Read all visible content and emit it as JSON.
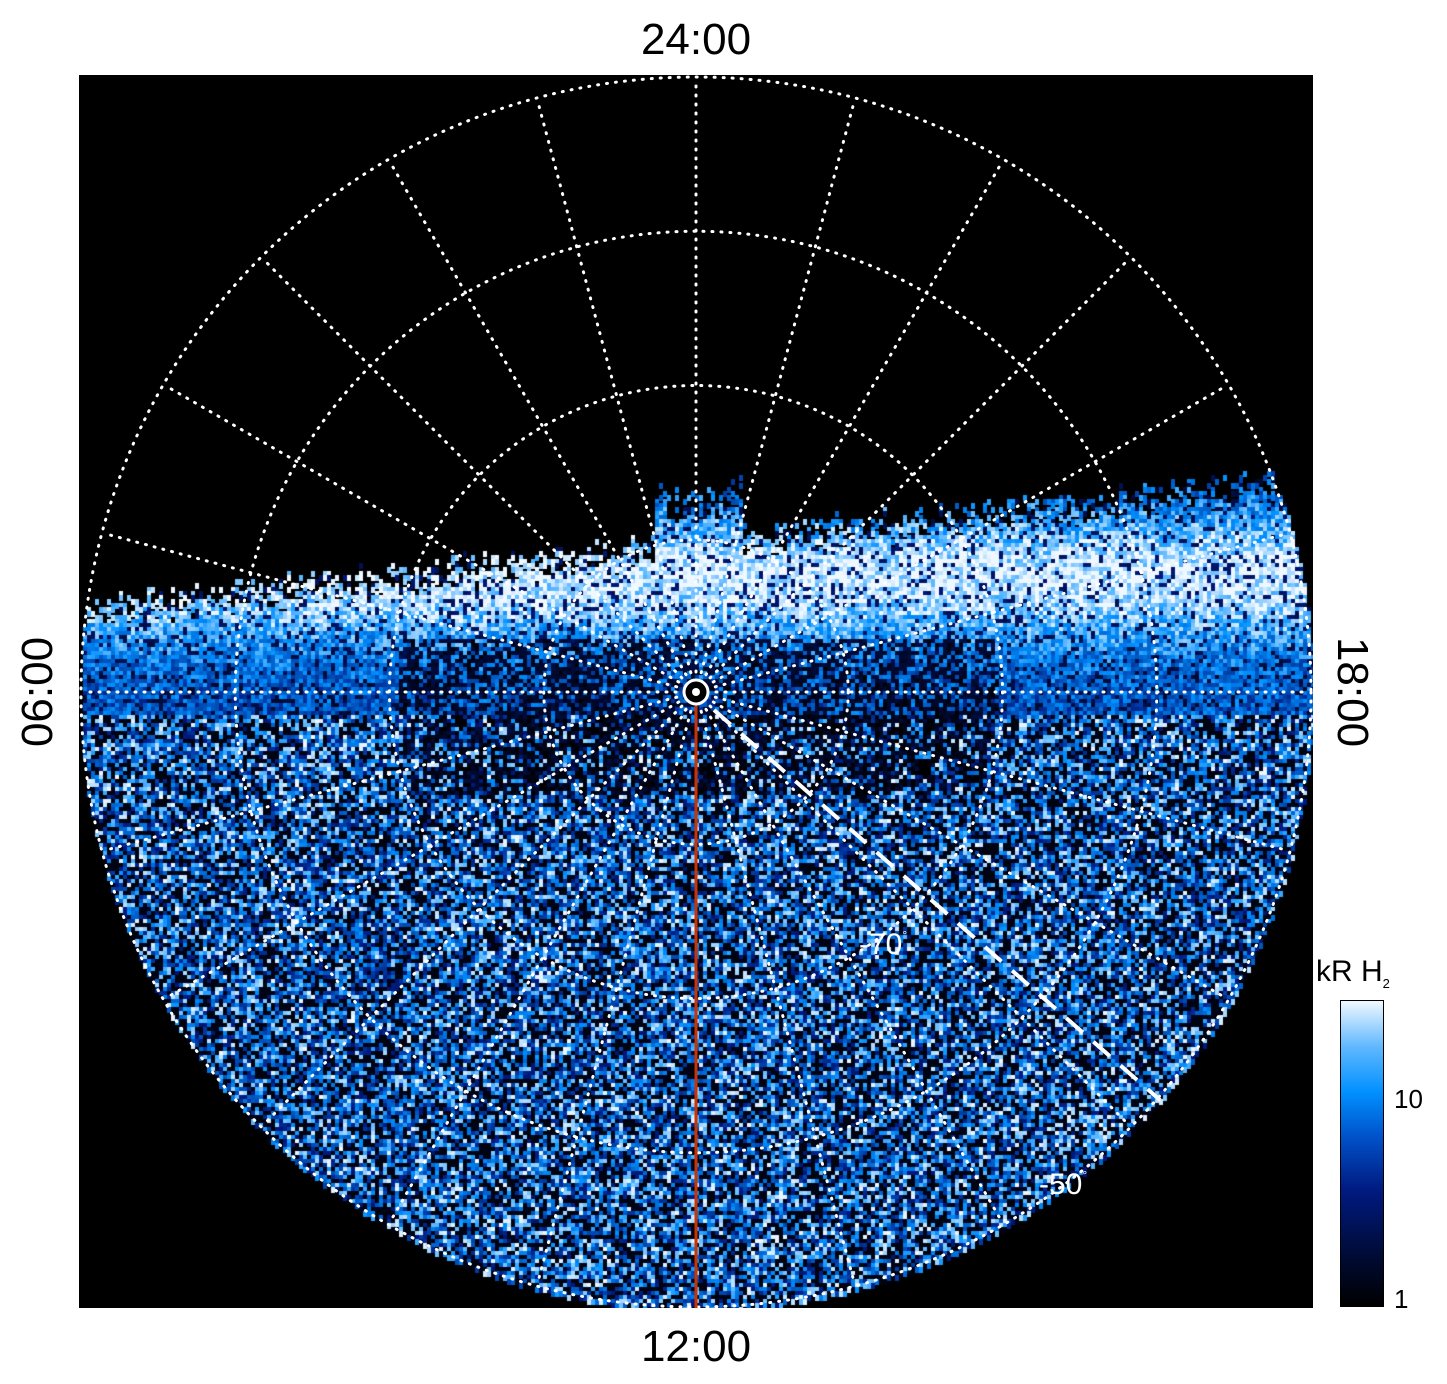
{
  "chart_data": {
    "type": "heatmap",
    "projection": "polar",
    "local_time_labels": {
      "top": "24:00",
      "bottom": "12:00",
      "left": "06:00",
      "right": "18:00"
    },
    "latitude_labels": [
      "-70",
      "-50"
    ],
    "latitude_unit": "°",
    "latitude_circles_deg": [
      -80,
      -70,
      -60,
      -50
    ],
    "meridian_spacing_hours": 1,
    "colorbar": {
      "title": "kR H",
      "title_sub": "2",
      "scale": "log",
      "range": [
        1,
        30
      ],
      "tick_labels": [
        "10",
        "1"
      ]
    },
    "colormap": [
      "#000000",
      "#001a80",
      "#0090ff",
      "#f0f8ff"
    ],
    "reference_line_color": "#cc3300",
    "grid": true
  }
}
